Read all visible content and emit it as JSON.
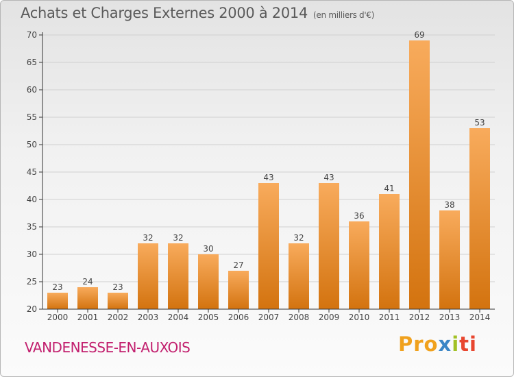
{
  "header": {
    "title": "Achats et Charges Externes 2000 à 2014",
    "subtitle": "(en milliers d'€)"
  },
  "footer": {
    "commune": "VANDENESSE-EN-AUXOIS",
    "brand_parts": [
      "Pro",
      "x",
      "i",
      "ti"
    ]
  },
  "colors": {
    "bar_light": "#f8ab5c",
    "bar_dark": "#d3730f",
    "grid": "#d0d0d0",
    "axis": "#333333",
    "text": "#444444",
    "commune": "#c21f6e"
  },
  "chart_data": {
    "type": "bar",
    "title": "Achats et Charges Externes 2000 à 2014",
    "subtitle": "(en milliers d'€)",
    "xlabel": "",
    "ylabel": "",
    "categories": [
      "2000",
      "2001",
      "2002",
      "2003",
      "2004",
      "2005",
      "2006",
      "2007",
      "2008",
      "2009",
      "2010",
      "2011",
      "2012",
      "2013",
      "2014"
    ],
    "values": [
      23,
      24,
      23,
      32,
      32,
      30,
      27,
      43,
      32,
      43,
      36,
      41,
      69,
      38,
      53
    ],
    "ylim": [
      20,
      70
    ],
    "yticks": [
      20,
      25,
      30,
      35,
      40,
      45,
      50,
      55,
      60,
      65,
      70
    ],
    "grid": true,
    "data_labels": true
  }
}
